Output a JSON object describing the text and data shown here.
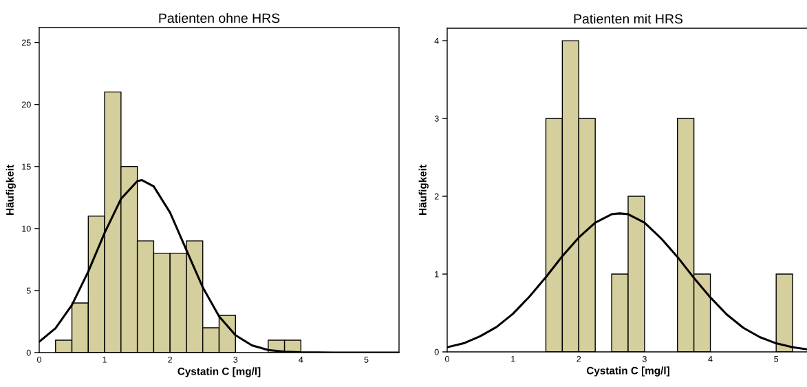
{
  "chart_data": [
    {
      "type": "histogram",
      "title": "Patienten ohne HRS",
      "xlabel": "Cystatin C [mg/l]",
      "ylabel": "Häufigkeit",
      "color": "#d4cf9c",
      "bins": [
        0.25,
        0.5,
        0.75,
        1.0,
        1.25,
        1.5,
        1.75,
        2.0,
        2.25,
        2.5,
        2.75,
        3.0,
        3.25,
        3.5,
        3.75,
        4.0
      ],
      "values": [
        1,
        4,
        11,
        21,
        15,
        9,
        8,
        8,
        9,
        2,
        3,
        0,
        0,
        1,
        1
      ],
      "series": [
        {
          "type": "line",
          "color": "#000000",
          "x": [
            0,
            0.25,
            0.5,
            0.75,
            1.0,
            1.25,
            1.5,
            1.57,
            1.75,
            2.0,
            2.25,
            2.5,
            2.75,
            3.0,
            3.25,
            3.5,
            3.75,
            4.0,
            4.5,
            5.5
          ],
          "values": [
            0.87,
            1.96,
            3.84,
            6.53,
            9.65,
            12.39,
            13.82,
            13.9,
            13.4,
            11.29,
            8.27,
            5.26,
            2.91,
            1.4,
            0.58,
            0.21,
            0.07,
            0.02,
            0,
            0
          ]
        }
      ],
      "xlim": [
        0,
        5.5
      ],
      "xticks": [
        0,
        1,
        2,
        3,
        4,
        5
      ],
      "ylim": [
        0,
        26.2
      ],
      "yticks": [
        0,
        5,
        10,
        15,
        20,
        25
      ],
      "grid": false,
      "legend": false
    },
    {
      "type": "histogram",
      "title": "Patienten mit HRS",
      "xlabel": "Cystatin C [mg/l]",
      "ylabel": "Häufigkeit",
      "color": "#d4cf9c",
      "bins": [
        1.5,
        1.75,
        2.0,
        2.25,
        2.5,
        2.75,
        3.0,
        3.25,
        3.5,
        3.75,
        4.0,
        4.25,
        4.5,
        4.75,
        5.0,
        5.25
      ],
      "values": [
        3,
        4,
        3,
        0,
        1,
        2,
        0,
        0,
        3,
        1,
        0,
        0,
        0,
        0,
        1
      ],
      "series": [
        {
          "type": "line",
          "color": "#000000",
          "x": [
            0,
            0.25,
            0.5,
            0.75,
            1.0,
            1.25,
            1.5,
            1.75,
            2.0,
            2.25,
            2.5,
            2.62,
            2.75,
            3.0,
            3.25,
            3.5,
            3.75,
            4.0,
            4.25,
            4.5,
            4.75,
            5.0,
            5.25,
            5.5
          ],
          "values": [
            0.06,
            0.11,
            0.2,
            0.32,
            0.49,
            0.71,
            0.96,
            1.23,
            1.47,
            1.66,
            1.77,
            1.78,
            1.77,
            1.66,
            1.46,
            1.22,
            0.95,
            0.7,
            0.48,
            0.31,
            0.19,
            0.11,
            0.06,
            0.03
          ]
        }
      ],
      "xlim": [
        0,
        5.5
      ],
      "xticks": [
        0,
        1,
        2,
        3,
        4,
        5
      ],
      "ylim": [
        0,
        4.16
      ],
      "yticks": [
        0,
        1,
        2,
        3,
        4
      ],
      "grid": false,
      "legend": false
    }
  ]
}
